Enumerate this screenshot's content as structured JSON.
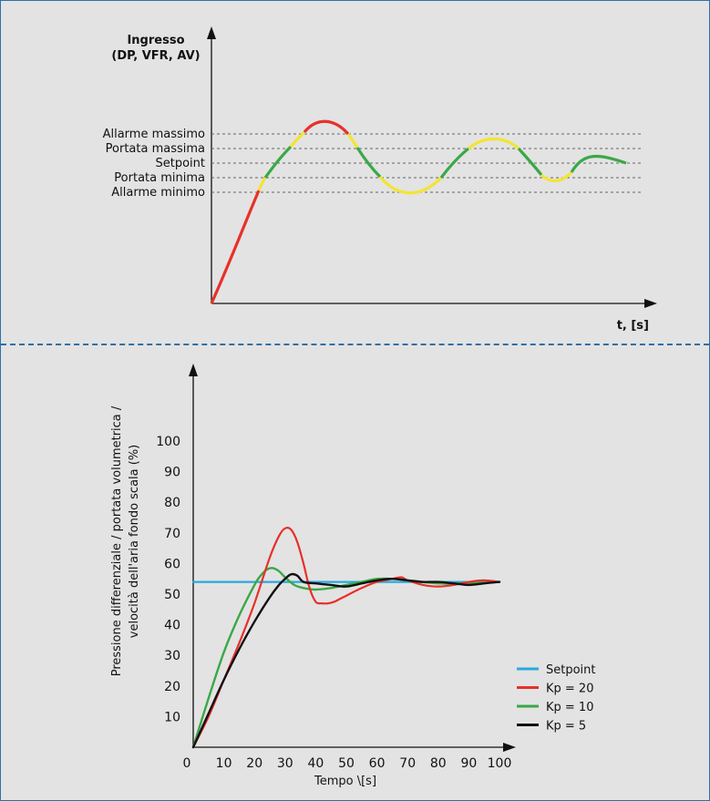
{
  "chart_data": [
    {
      "type": "line",
      "title": "",
      "ylabel_lines": [
        "Ingresso",
        "(DP, VFR, AV)"
      ],
      "xlabel": "t, [s]",
      "threshold_levels": [
        {
          "label": "Allarme massimo"
        },
        {
          "label": "Portata massima"
        },
        {
          "label": "Setpoint"
        },
        {
          "label": "Portata minima"
        },
        {
          "label": "Allarme minimo"
        }
      ],
      "zone_colors": {
        "alarm": "#e8302a",
        "warning": "#f2e531",
        "normal": "#3aa846"
      }
    },
    {
      "type": "line",
      "ylabel_lines": [
        "Pressione differenziale / portata volumetrica /",
        "velocità dell'aria fondo scala (%)"
      ],
      "xlabel": "Tempo  \\[s]",
      "xlim": [
        0,
        100
      ],
      "ylim": [
        0,
        110
      ],
      "x_ticks": [
        0,
        10,
        20,
        30,
        40,
        50,
        60,
        70,
        80,
        90,
        100
      ],
      "y_ticks": [
        10,
        20,
        30,
        40,
        50,
        60,
        70,
        80,
        90,
        100
      ],
      "x_tick_labels": [
        "0",
        "10",
        "20",
        "30",
        "40",
        "50",
        "60",
        "70",
        "80",
        "90",
        "100"
      ],
      "y_tick_labels": [
        "10",
        "20",
        "30",
        "40",
        "50",
        "60",
        "70",
        "80",
        "90",
        "100"
      ],
      "legend_position": "bottom-right",
      "series": [
        {
          "name": "Setpoint",
          "color": "#2aa8e0",
          "x": [
            0,
            100
          ],
          "y": [
            54,
            54
          ]
        },
        {
          "name": "Kp = 20",
          "color": "#e8302a",
          "x": [
            0,
            5,
            10,
            15,
            20,
            25,
            28,
            30,
            32,
            34,
            36,
            38,
            40,
            42,
            44,
            46,
            48,
            50,
            55,
            60,
            65,
            68,
            70,
            75,
            80,
            85,
            90,
            95,
            100
          ],
          "y": [
            0,
            10,
            22,
            34,
            47,
            62,
            69,
            71.5,
            71,
            67,
            60,
            52,
            47.5,
            47,
            47,
            47.5,
            48.5,
            49.5,
            52,
            54,
            55,
            55.5,
            54.5,
            53,
            52.5,
            53,
            54,
            54.5,
            54
          ]
        },
        {
          "name": "Kp = 10",
          "color": "#3aa846",
          "x": [
            0,
            5,
            10,
            15,
            20,
            22,
            24,
            26,
            28,
            30,
            33,
            36,
            40,
            45,
            50,
            55,
            60,
            65,
            70,
            80,
            90,
            100
          ],
          "y": [
            0,
            16,
            31,
            43,
            53,
            56,
            58,
            58.5,
            57.5,
            55.5,
            53,
            52,
            51.5,
            52,
            53,
            54,
            55,
            55,
            54.5,
            53.5,
            53.5,
            54
          ]
        },
        {
          "name": "Kp = 5",
          "color": "#111111",
          "x": [
            0,
            5,
            10,
            15,
            20,
            25,
            28,
            30,
            32,
            34,
            36,
            40,
            45,
            50,
            55,
            60,
            65,
            70,
            75,
            80,
            85,
            90,
            95,
            100
          ],
          "y": [
            0,
            11,
            22,
            32,
            41,
            49,
            53,
            55,
            56.5,
            56,
            54,
            53.5,
            53,
            52.5,
            53.5,
            54.5,
            55,
            54.5,
            54,
            54,
            53.5,
            53,
            53.5,
            54
          ]
        }
      ]
    }
  ]
}
